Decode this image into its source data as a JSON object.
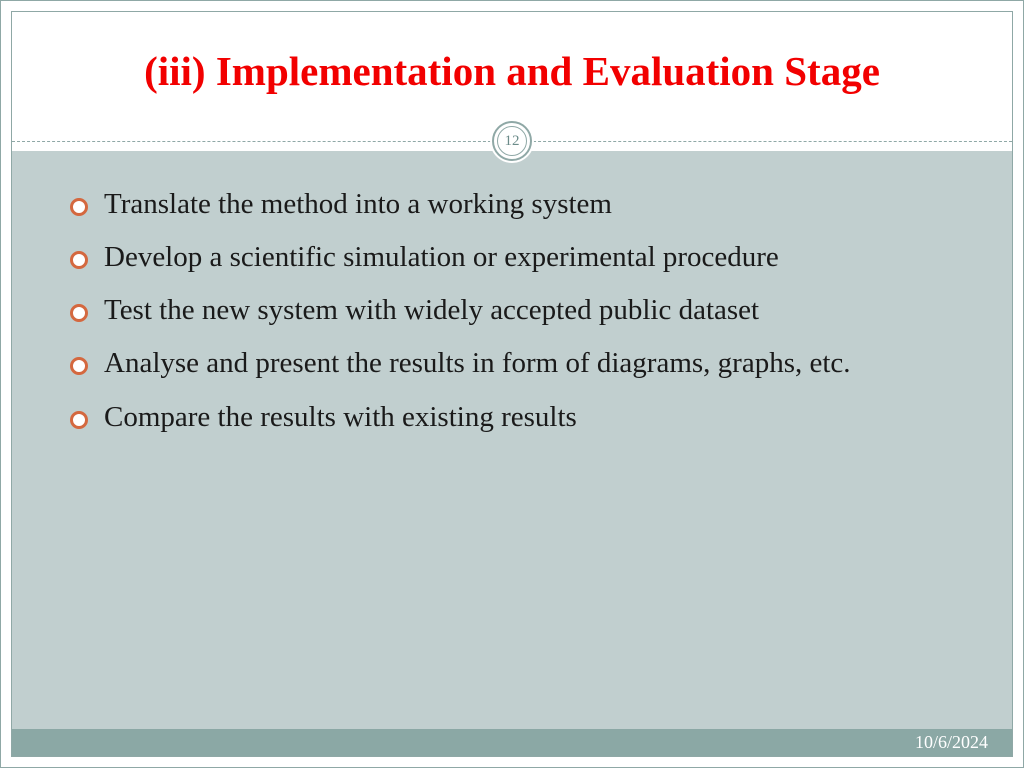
{
  "slide": {
    "title": "(iii) Implementation and Evaluation Stage",
    "title_color": "#f20000",
    "title_fontsize": 41,
    "page_number": "12",
    "page_number_color": "#6b8b89",
    "page_number_fontsize": 15,
    "divider_color": "#8fa8a6",
    "body_background": "#c1cfcf",
    "body_text_color": "#1a1a1a",
    "body_fontsize": 29,
    "bullet_color": "#d4683f",
    "bullet_border_width": 3,
    "bullets": [
      "Translate the method into a working system",
      "Develop a scientific simulation or experimental procedure",
      "Test the new system with widely accepted public dataset",
      "Analyse and present the results in form of diagrams, graphs, etc.",
      "Compare the results with existing results"
    ],
    "footer_background": "#8ba8a5",
    "footer_date": "10/6/2024",
    "footer_date_color": "#ffffff",
    "footer_fontsize": 18
  }
}
